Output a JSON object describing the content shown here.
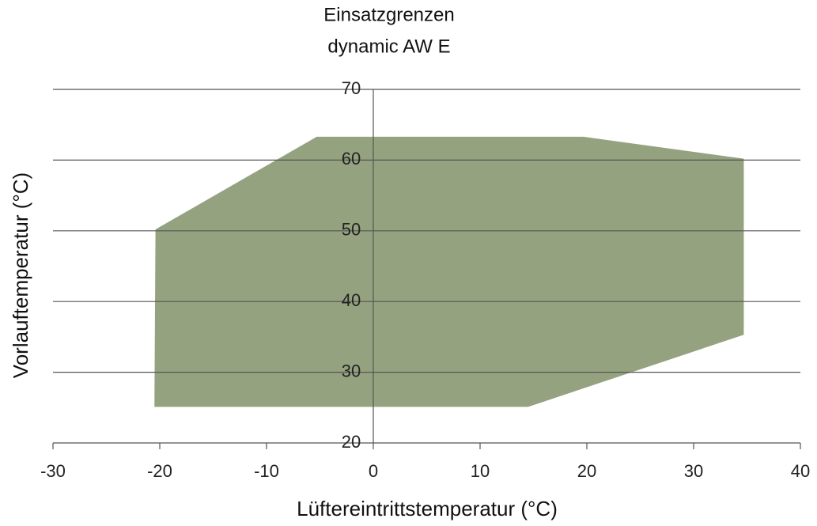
{
  "chart_data": {
    "type": "area",
    "title": "Einsatzgrenzen",
    "subtitle": "dynamic AW E",
    "x_label": "Lüftereintrittstemperatur (°C)",
    "y_label": "Vorlauftemperatur (°C)",
    "x": [
      -20.4,
      -5.3,
      19.7,
      34.7,
      34.7,
      14.5,
      -20.5
    ],
    "values": [
      50.2,
      63.3,
      63.3,
      60.2,
      35.3,
      25.1,
      25.1
    ],
    "color": "#8f9d78",
    "xlim": [
      -30,
      40
    ],
    "xticks": [
      -30,
      -20,
      -10,
      0,
      10,
      20,
      30,
      40
    ],
    "ylim": [
      20,
      70
    ],
    "yticks": [
      20,
      30,
      40,
      50,
      60,
      70
    ],
    "grid": true
  }
}
